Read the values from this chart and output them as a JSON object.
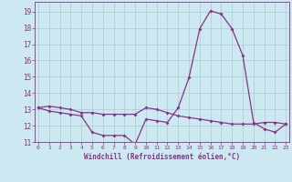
{
  "xlabel": "Windchill (Refroidissement éolien,°C)",
  "bg_color": "#cce8f0",
  "grid_color": "#aacccc",
  "line_color": "#883388",
  "x": [
    0,
    1,
    2,
    3,
    4,
    5,
    6,
    7,
    8,
    9,
    10,
    11,
    12,
    13,
    14,
    15,
    16,
    17,
    18,
    19,
    20,
    21,
    22,
    23
  ],
  "series1": [
    13.1,
    13.2,
    13.1,
    13.0,
    12.8,
    12.8,
    12.7,
    12.7,
    12.7,
    12.7,
    13.1,
    13.0,
    12.8,
    12.6,
    12.5,
    12.4,
    12.3,
    12.2,
    12.1,
    12.1,
    12.1,
    12.2,
    12.2,
    12.1
  ],
  "series2": [
    13.1,
    12.9,
    12.8,
    12.7,
    12.6,
    11.6,
    11.4,
    11.4,
    11.4,
    10.85,
    12.4,
    12.3,
    12.2,
    13.1,
    14.95,
    17.95,
    19.05,
    18.85,
    17.95,
    16.3,
    12.2,
    11.8,
    11.6,
    12.1
  ],
  "ylim": [
    11.0,
    19.6
  ],
  "yticks": [
    11,
    12,
    13,
    14,
    15,
    16,
    17,
    18,
    19
  ],
  "xticks": [
    0,
    1,
    2,
    3,
    4,
    5,
    6,
    7,
    8,
    9,
    10,
    11,
    12,
    13,
    14,
    15,
    16,
    17,
    18,
    19,
    20,
    21,
    22,
    23
  ],
  "xlim": [
    -0.3,
    23.3
  ]
}
